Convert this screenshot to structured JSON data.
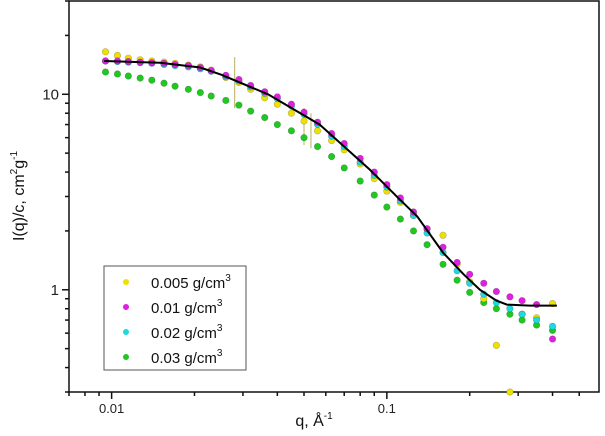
{
  "chart_data": {
    "type": "scatter",
    "xscale": "log",
    "yscale": "log",
    "xlabel": "q, Å",
    "xlabel_sup": "-1",
    "ylabel": "I(q)/c, cm",
    "ylabel_sup1": "2",
    "ylabel_mid": "g",
    "ylabel_sup2": "-1",
    "xlim": [
      0.007,
      0.59
    ],
    "ylim": [
      0.3,
      30
    ],
    "x_ticks": [
      {
        "value": 0.01,
        "label": "0.01"
      },
      {
        "value": 0.1,
        "label": "0.1"
      }
    ],
    "y_ticks": [
      {
        "value": 1,
        "label": "1"
      },
      {
        "value": 10,
        "label": "10"
      }
    ],
    "grid": false,
    "legend_position": "bottom-left",
    "x": [
      0.0095,
      0.0105,
      0.0115,
      0.0127,
      0.014,
      0.0155,
      0.017,
      0.019,
      0.021,
      0.023,
      0.026,
      0.029,
      0.032,
      0.036,
      0.04,
      0.045,
      0.05,
      0.056,
      0.063,
      0.07,
      0.08,
      0.09,
      0.1,
      0.112,
      0.125,
      0.14,
      0.16,
      0.18,
      0.2,
      0.225,
      0.25,
      0.28,
      0.31,
      0.35,
      0.4
    ],
    "series": [
      {
        "name": "0.005 g/cm",
        "sup": "3",
        "color": "#f0e000",
        "values": [
          16.5,
          15.8,
          15.3,
          15.0,
          14.8,
          14.6,
          14.4,
          14.1,
          13.8,
          13.3,
          12.2,
          11.5,
          10.6,
          9.6,
          8.9,
          8.0,
          7.3,
          6.5,
          5.8,
          5.2,
          4.4,
          3.7,
          3.2,
          2.8,
          2.4,
          2.05,
          1.9,
          1.35,
          1.1,
          0.9,
          0.52,
          0.3,
          0.75,
          0.72,
          0.85
        ]
      },
      {
        "name": "0.01 g/cm",
        "sup": "3",
        "color": "#e020e0",
        "values": [
          14.8,
          14.8,
          14.7,
          14.6,
          14.5,
          14.4,
          14.2,
          14.0,
          13.7,
          13.2,
          12.5,
          11.9,
          11.1,
          10.3,
          9.7,
          8.9,
          8.1,
          7.2,
          6.3,
          5.6,
          4.7,
          4.0,
          3.45,
          2.95,
          2.5,
          2.05,
          1.65,
          1.38,
          1.2,
          1.08,
          0.98,
          0.92,
          0.88,
          0.84,
          0.56
        ]
      },
      {
        "name": "0.02 g/cm",
        "sup": "3",
        "color": "#20d8e0",
        "values": [
          14.8,
          14.7,
          14.6,
          14.5,
          14.4,
          14.2,
          14.0,
          13.8,
          13.5,
          13.1,
          12.3,
          11.7,
          10.9,
          10.1,
          9.5,
          8.7,
          7.9,
          7.0,
          6.1,
          5.4,
          4.5,
          3.85,
          3.35,
          2.85,
          2.4,
          1.95,
          1.55,
          1.25,
          1.08,
          0.95,
          0.86,
          0.8,
          0.75,
          0.7,
          0.65
        ]
      },
      {
        "name": "0.03 g/cm",
        "sup": "3",
        "color": "#20c820",
        "values": [
          13.0,
          12.7,
          12.4,
          12.1,
          11.8,
          11.4,
          11.0,
          10.6,
          10.2,
          9.8,
          9.3,
          8.8,
          8.2,
          7.6,
          7.0,
          6.5,
          6.0,
          5.4,
          4.8,
          4.2,
          3.6,
          3.05,
          2.65,
          2.3,
          2.0,
          1.7,
          1.35,
          1.12,
          0.97,
          0.86,
          0.8,
          0.75,
          0.7,
          0.66,
          0.62
        ]
      }
    ],
    "fit": {
      "color": "#000000",
      "x": [
        0.0094,
        0.015,
        0.021,
        0.025,
        0.037,
        0.057,
        0.087,
        0.11,
        0.129,
        0.16,
        0.19,
        0.218,
        0.25,
        0.273,
        0.33,
        0.415
      ],
      "values": [
        14.8,
        14.5,
        13.7,
        12.6,
        10.0,
        7.0,
        4.1,
        2.95,
        2.37,
        1.55,
        1.2,
        1.0,
        0.88,
        0.84,
        0.83,
        0.83
      ]
    },
    "error_bars": [
      {
        "x": 0.028,
        "low": 8.5,
        "high": 15.5
      },
      {
        "x": 0.05,
        "low": 5.5,
        "high": 8.5
      },
      {
        "x": 0.053,
        "low": 5.3,
        "high": 8.0
      }
    ]
  }
}
